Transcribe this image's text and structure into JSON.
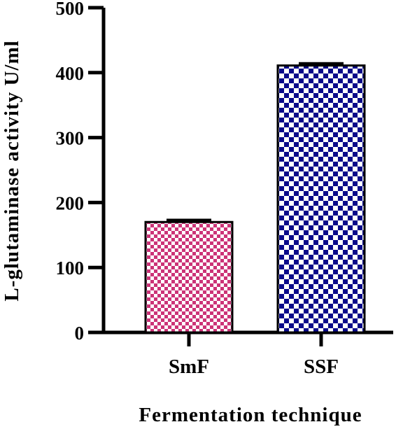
{
  "chart_data": {
    "type": "bar",
    "categories": [
      "SmF",
      "SSF"
    ],
    "values": [
      170,
      411
    ],
    "errors": [
      3,
      3
    ],
    "title": "",
    "xlabel": "Fermentation technique",
    "ylabel": "L-glutaminase activity U/ml",
    "ylim": [
      0,
      500
    ],
    "yticks": [
      "0",
      "100",
      "200",
      "300",
      "400",
      "500"
    ],
    "grid": false,
    "legend": "none",
    "colors": {
      "SmF": {
        "fill": "#cc3377",
        "check": "#ffffff"
      },
      "SSF": {
        "fill": "#0a0a8a",
        "check": "#ffffff"
      }
    }
  }
}
